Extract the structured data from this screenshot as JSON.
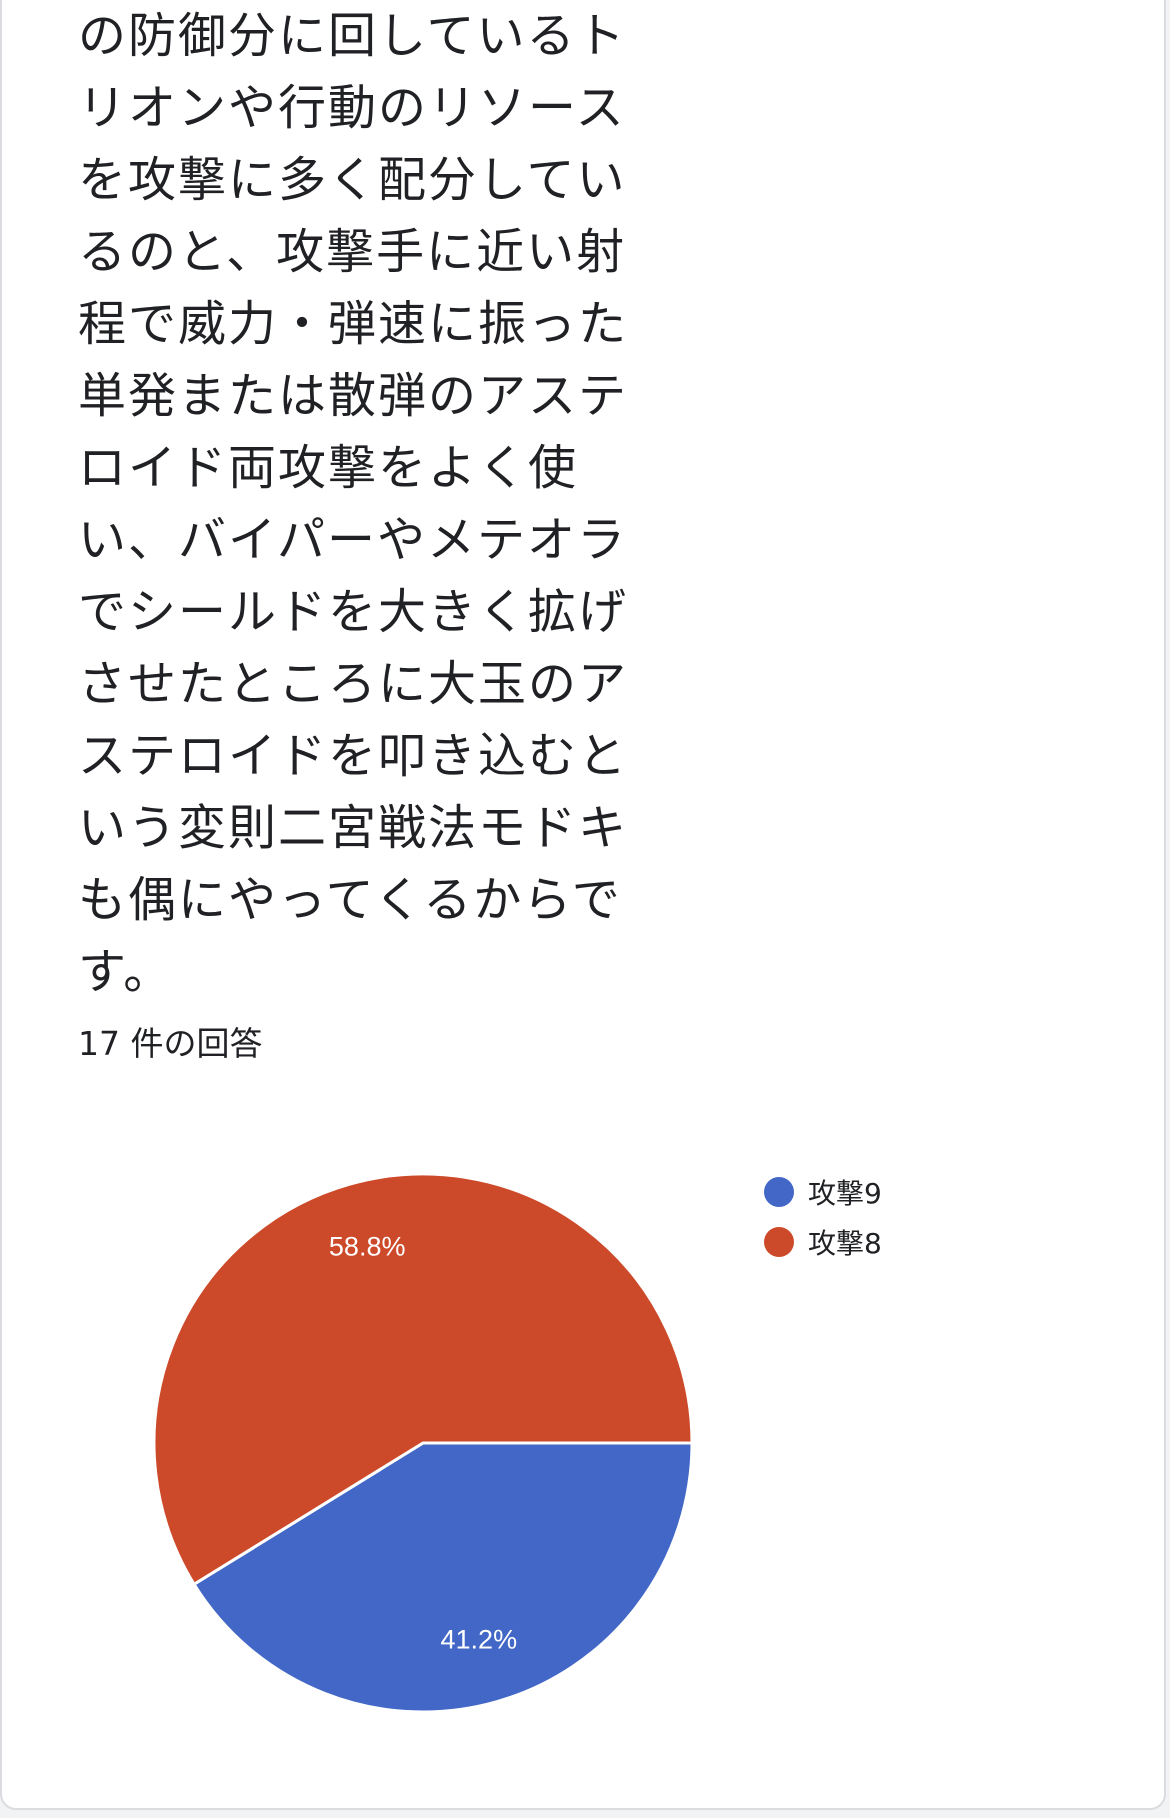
{
  "question": {
    "lines": [
      "の防御分に回しているト",
      "リオンや行動のリソース",
      "を攻撃に多く配分してい",
      "るのと、攻撃手に近い射",
      "程で威力・弾速に振った",
      "単発または散弾のアステ",
      "ロイド両攻撃をよく使",
      "い、バイパーやメテオラ",
      "でシールドを大きく拡げ",
      "させたところに大玉のア",
      "ステロイドを叩き込むと",
      "いう変則二宮戦法モドキ",
      "も偶にやってくるからで",
      "す。"
    ]
  },
  "response_count": "17 件の回答",
  "chart_data": {
    "type": "pie",
    "categories": [
      "攻撃9",
      "攻撃8"
    ],
    "values": [
      41.2,
      58.8
    ],
    "labels": [
      "41.2%",
      "58.8%"
    ],
    "colors": [
      "#4267c6",
      "#cc4a2a"
    ],
    "start": "3 o'clock, clockwise",
    "legend_position": "top-right"
  }
}
